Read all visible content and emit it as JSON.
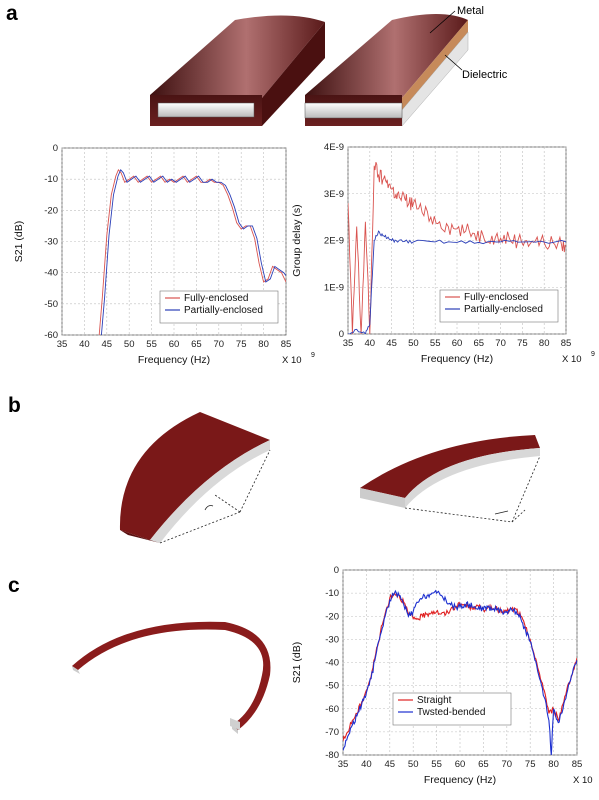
{
  "panels": {
    "a": "a",
    "b": "b",
    "c": "c"
  },
  "illustration_labels": {
    "metal": "Metal",
    "dielectric": "Dielectric"
  },
  "colors": {
    "red": "#d9534f",
    "blue": "#2b3fb8",
    "darkred": "#8b1a1a",
    "metal": "#7a2a2a",
    "dielectric": "#d8d8d8",
    "grid": "#c8c8c8"
  },
  "chart_data": [
    {
      "id": "s21_enclosure",
      "type": "line",
      "title": "",
      "xlabel": "Frequency (Hz)",
      "ylabel": "S21 (dB)",
      "x_multiplier": "X 10",
      "x_multiplier_exp": "9",
      "xlim": [
        35,
        85
      ],
      "ylim": [
        -60,
        0
      ],
      "xticks": [
        35,
        40,
        45,
        50,
        55,
        60,
        65,
        70,
        75,
        80,
        85
      ],
      "yticks": [
        0,
        -10,
        -20,
        -30,
        -40,
        -50,
        -60
      ],
      "grid": true,
      "legend_position": "bottom-right",
      "series": [
        {
          "name": "Fully-enclosed",
          "color": "#d9534f",
          "x": [
            43.3,
            44,
            45,
            46,
            47,
            47.6,
            48.2,
            49,
            50,
            51,
            52,
            53,
            54,
            55,
            56,
            57,
            58,
            59,
            60,
            61,
            62,
            63,
            64,
            65,
            66,
            67,
            68,
            69,
            70,
            71,
            72,
            73,
            74,
            75,
            76,
            77,
            78,
            79,
            80,
            81,
            82,
            83,
            84,
            85
          ],
          "y": [
            -60,
            -48,
            -28,
            -15,
            -9,
            -7,
            -8,
            -11,
            -10,
            -9,
            -11,
            -10,
            -9,
            -11,
            -10,
            -9,
            -11,
            -10,
            -11,
            -10,
            -9,
            -11,
            -10,
            -9,
            -11,
            -11,
            -10,
            -11,
            -11,
            -12,
            -15,
            -19,
            -24,
            -26,
            -25,
            -25,
            -29,
            -37,
            -43,
            -42,
            -38,
            -39,
            -40,
            -43
          ]
        },
        {
          "name": "Partially-enclosed",
          "color": "#2b3fb8",
          "x": [
            43.8,
            44.5,
            45.5,
            46.5,
            47.5,
            48.1,
            48.7,
            49.5,
            50.5,
            51.5,
            52.5,
            53.5,
            54.5,
            55.5,
            56.5,
            57.5,
            58.5,
            59.5,
            60.5,
            61.5,
            62.5,
            63.5,
            64.5,
            65.5,
            66.5,
            67.5,
            68.5,
            69.5,
            70.5,
            71.5,
            72.5,
            73.5,
            74.5,
            75.5,
            76.5,
            77.5,
            78.5,
            79.5,
            80.5,
            81.5,
            82.5,
            83.5,
            84.5,
            85
          ],
          "y": [
            -60,
            -48,
            -28,
            -15,
            -9,
            -7,
            -8,
            -11,
            -10,
            -9,
            -11,
            -10,
            -9,
            -11,
            -10,
            -9,
            -11,
            -10,
            -11,
            -10,
            -9,
            -11,
            -10,
            -9,
            -11,
            -11,
            -10,
            -11,
            -11,
            -12,
            -15,
            -19,
            -24,
            -26,
            -25,
            -25,
            -29,
            -37,
            -43,
            -42,
            -38,
            -39,
            -40,
            -41
          ]
        }
      ]
    },
    {
      "id": "group_delay",
      "type": "line",
      "title": "",
      "xlabel": "Frequency (Hz)",
      "ylabel": "Group delay (s)",
      "x_multiplier": "X 10",
      "x_multiplier_exp": "9",
      "xlim": [
        35,
        85
      ],
      "ylim": [
        0,
        4
      ],
      "xticks": [
        35,
        40,
        45,
        50,
        55,
        60,
        65,
        70,
        75,
        80,
        85
      ],
      "yticks": [
        0,
        1,
        2,
        3,
        4
      ],
      "ytick_labels": [
        "0",
        "1E-9",
        "2E-9",
        "3E-9",
        "4E-9"
      ],
      "grid": true,
      "legend_position": "bottom-right",
      "series": [
        {
          "name": "Fully-enclosed",
          "color": "#d9534f",
          "x": [
            35,
            36,
            37,
            38,
            39,
            40,
            41,
            42,
            43,
            44,
            45,
            46,
            47,
            48,
            49,
            50,
            52,
            54,
            56,
            58,
            60,
            62,
            64,
            66,
            68,
            70,
            72,
            74,
            76,
            78,
            80,
            82,
            84,
            85
          ],
          "y": [
            2.8,
            0,
            2.3,
            0,
            2.4,
            0,
            3.6,
            3.4,
            3.3,
            3.3,
            3.1,
            3.0,
            2.9,
            2.9,
            2.8,
            2.8,
            2.6,
            2.5,
            2.4,
            2.3,
            2.25,
            2.2,
            2.15,
            2.1,
            2.1,
            2.05,
            2.05,
            2.0,
            2.0,
            2.0,
            1.95,
            1.95,
            1.9,
            1.9
          ]
        },
        {
          "name": "Partially-enclosed",
          "color": "#2b3fb8",
          "x": [
            35,
            37,
            39,
            40,
            41,
            42,
            43,
            44,
            45,
            46,
            48,
            50,
            55,
            60,
            65,
            70,
            75,
            80,
            85
          ],
          "y": [
            0,
            0.1,
            0,
            0.2,
            2.0,
            2.2,
            2.1,
            2.05,
            2.0,
            2.0,
            1.98,
            1.97,
            1.97,
            1.96,
            1.96,
            1.97,
            1.97,
            1.97,
            1.97
          ]
        }
      ]
    },
    {
      "id": "s21_bending",
      "type": "line",
      "title": "",
      "xlabel": "Frequency (Hz)",
      "ylabel": "S21 (dB)",
      "x_multiplier": "X 10",
      "x_multiplier_exp": "9",
      "xlim": [
        35,
        85
      ],
      "ylim": [
        -80,
        0
      ],
      "xticks": [
        35,
        40,
        45,
        50,
        55,
        60,
        65,
        70,
        75,
        80,
        85
      ],
      "yticks": [
        0,
        -10,
        -20,
        -30,
        -40,
        -50,
        -60,
        -70,
        -80
      ],
      "grid": true,
      "legend_position": "bottom-center",
      "series": [
        {
          "name": "Straight",
          "color": "#e02020",
          "x": [
            35,
            36,
            37,
            38,
            39,
            40,
            41,
            42,
            43,
            44,
            45,
            46,
            47,
            48,
            49,
            50,
            51,
            52,
            53,
            54,
            55,
            56,
            57,
            58,
            59,
            60,
            61,
            62,
            63,
            64,
            65,
            66,
            67,
            68,
            69,
            70,
            71,
            72,
            73,
            74,
            75,
            76,
            77,
            78,
            79,
            80,
            81,
            82,
            83,
            84,
            85
          ],
          "y": [
            -74,
            -70,
            -65,
            -62,
            -57,
            -52,
            -46,
            -36,
            -27,
            -19,
            -12,
            -10,
            -11,
            -14,
            -19,
            -21,
            -21,
            -20,
            -19,
            -18,
            -18,
            -19,
            -19,
            -17,
            -16,
            -15,
            -15,
            -16,
            -16,
            -16,
            -17,
            -16,
            -17,
            -17,
            -18,
            -18,
            -17,
            -17,
            -20,
            -25,
            -30,
            -38,
            -45,
            -52,
            -62,
            -60,
            -65,
            -58,
            -50,
            -45,
            -38
          ]
        },
        {
          "name": "Twsted-bended",
          "color": "#1c2fd0",
          "x": [
            35,
            36,
            37,
            38,
            39,
            40,
            41,
            42,
            43,
            44,
            45,
            46,
            47,
            48,
            49,
            50,
            51,
            52,
            53,
            54,
            55,
            56,
            57,
            58,
            59,
            60,
            61,
            62,
            63,
            64,
            65,
            66,
            67,
            68,
            69,
            70,
            71,
            72,
            73,
            74,
            75,
            76,
            77,
            78,
            79,
            79.5,
            80,
            81,
            82,
            83,
            84,
            85
          ],
          "y": [
            -78,
            -72,
            -67,
            -63,
            -58,
            -53,
            -47,
            -37,
            -28,
            -20,
            -13,
            -10,
            -11,
            -15,
            -20,
            -18,
            -14,
            -12,
            -11,
            -10,
            -10,
            -11,
            -13,
            -15,
            -16,
            -16,
            -15,
            -15,
            -16,
            -16,
            -17,
            -16,
            -17,
            -17,
            -18,
            -18,
            -17,
            -18,
            -21,
            -26,
            -31,
            -39,
            -47,
            -55,
            -65,
            -80,
            -60,
            -66,
            -60,
            -52,
            -45,
            -39
          ]
        }
      ]
    }
  ]
}
